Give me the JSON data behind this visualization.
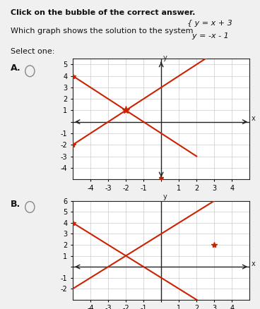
{
  "title_text": "Click on the bubble of the correct answer.",
  "question_text": "Which graph shows the solution to the system",
  "eq1": "y = x + 3",
  "eq2": "y = -x - 1",
  "select_text": "Select one:",
  "graph_A_label": "A.",
  "graph_B_label": "B.",
  "bg_color": "#f0f0f0",
  "line_color": "#cc2200",
  "graph_bg": "#ffffff",
  "axis_color": "#222222",
  "grid_color": "#cccccc",
  "text_color": "#111111",
  "xlim": [
    -5,
    5
  ],
  "ylim_A": [
    -5,
    5.5
  ],
  "ylim_B": [
    -3,
    6
  ],
  "x_range": [
    -5,
    5
  ],
  "graphA_line1_points": [
    [
      -5,
      -2
    ],
    [
      3,
      6
    ]
  ],
  "graphA_line2_points": [
    [
      -5,
      4
    ],
    [
      1.5,
      -2.5
    ]
  ],
  "graphB_line1_points": [
    [
      -5,
      4
    ],
    [
      0,
      -1
    ]
  ],
  "graphB_line2_points": [
    [
      0,
      -1
    ],
    [
      3,
      2
    ]
  ],
  "intersection_A": [
    -2,
    1
  ],
  "marker_color": "#cc2200",
  "marker_size": 8,
  "font_size_title": 8,
  "font_size_label": 9,
  "font_size_tick": 7,
  "font_size_eq": 9,
  "radio_circle_color": "#888888",
  "radio_fill": "none"
}
